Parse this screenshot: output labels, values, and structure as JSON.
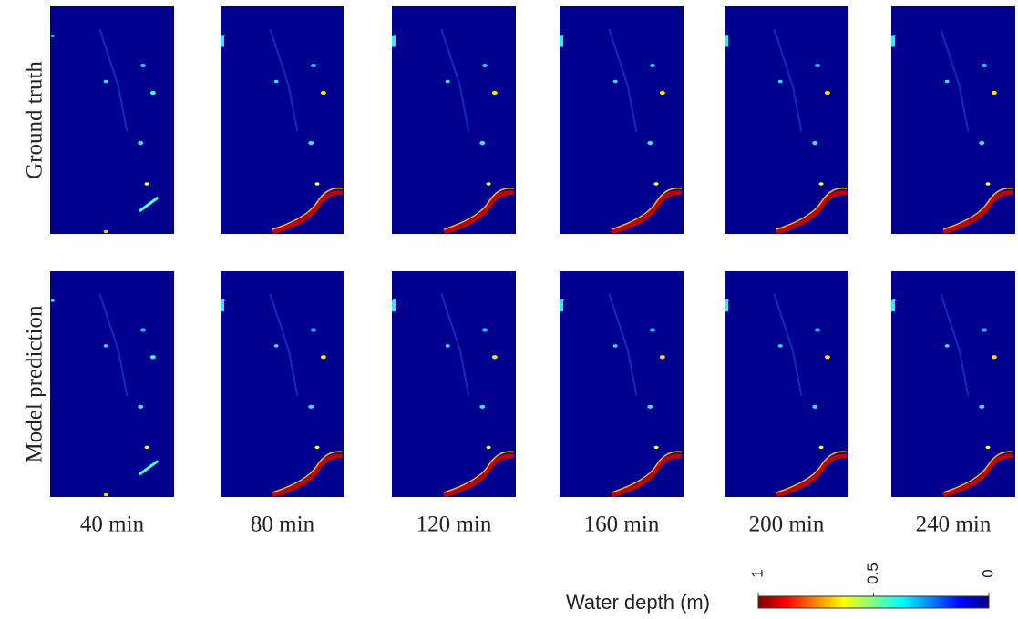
{
  "rows": [
    "Ground truth",
    "Model prediction"
  ],
  "columns": [
    "40 min",
    "80 min",
    "120 min",
    "160 min",
    "200 min",
    "240 min"
  ],
  "colorbar": {
    "label": "Water depth (m)",
    "ticks": [
      1,
      0.5,
      0
    ]
  }
}
